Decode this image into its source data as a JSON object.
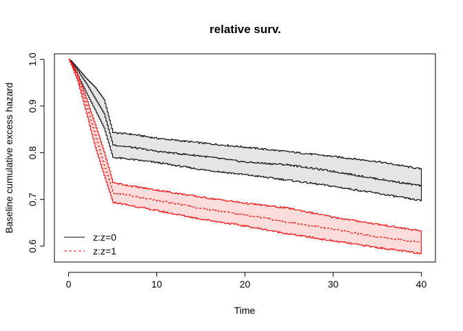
{
  "chart_data": {
    "type": "line",
    "title": "relative surv.",
    "xlabel": "Time",
    "ylabel": "Baseline cumulative excess hazard",
    "xlim": [
      -1.6,
      41.6
    ],
    "ylim": [
      0.566,
      1.012
    ],
    "x_ticks": [
      0,
      10,
      20,
      30,
      40
    ],
    "x_tick_labels": [
      "0",
      "10",
      "20",
      "30",
      "40"
    ],
    "y_ticks": [
      0.6,
      0.7,
      0.8,
      0.9,
      1.0
    ],
    "y_tick_labels": [
      "0.6",
      "0.7",
      "0.8",
      "0.9",
      "1.0"
    ],
    "grid": false,
    "legend_position": "bottom-left",
    "series": [
      {
        "name": "z:z=0",
        "color": "#000000",
        "band_fill": "#e5e5e5",
        "line_style": "solid",
        "x": [
          0,
          0.3,
          1,
          2,
          3,
          4,
          5,
          7,
          10,
          15,
          20,
          25,
          30,
          35,
          40
        ],
        "estimate": [
          1.0,
          0.995,
          0.976,
          0.948,
          0.916,
          0.884,
          0.817,
          0.812,
          0.803,
          0.793,
          0.78,
          0.774,
          0.76,
          0.744,
          0.729
        ],
        "upper": [
          1.0,
          0.996,
          0.981,
          0.959,
          0.94,
          0.914,
          0.843,
          0.84,
          0.831,
          0.821,
          0.812,
          0.802,
          0.792,
          0.781,
          0.765
        ],
        "lower": [
          1.0,
          0.99,
          0.967,
          0.928,
          0.891,
          0.853,
          0.79,
          0.786,
          0.779,
          0.764,
          0.753,
          0.741,
          0.728,
          0.713,
          0.697
        ]
      },
      {
        "name": "z:z=1",
        "color": "#ff0000",
        "band_fill": "#fddcdc",
        "line_style": "dashed",
        "x": [
          0,
          0.3,
          1,
          2,
          3,
          4,
          5,
          7,
          10,
          15,
          20,
          25,
          30,
          35,
          40
        ],
        "estimate": [
          1.0,
          0.992,
          0.962,
          0.902,
          0.838,
          0.774,
          0.714,
          0.708,
          0.698,
          0.681,
          0.667,
          0.651,
          0.636,
          0.62,
          0.608
        ],
        "upper": [
          1.0,
          0.993,
          0.967,
          0.916,
          0.86,
          0.802,
          0.736,
          0.729,
          0.72,
          0.705,
          0.692,
          0.681,
          0.662,
          0.647,
          0.632
        ],
        "lower": [
          1.0,
          0.988,
          0.954,
          0.885,
          0.812,
          0.752,
          0.694,
          0.687,
          0.676,
          0.658,
          0.643,
          0.626,
          0.611,
          0.597,
          0.584
        ]
      }
    ]
  }
}
